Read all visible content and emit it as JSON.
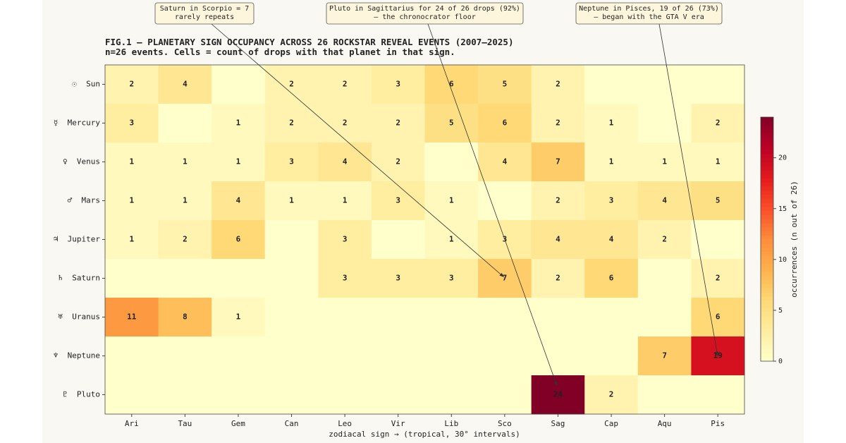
{
  "chart_data": {
    "type": "heatmap",
    "title": "FIG.1 — PLANETARY SIGN OCCUPANCY ACROSS 26 ROCKSTAR REVEAL EVENTS  (2007–2025)",
    "subtitle": "n=26 events. Cells = count of drops with that planet in that sign.",
    "x_label": "zodiacal sign  →  (tropical, 30° intervals)",
    "x_categories": [
      "Ari",
      "Tau",
      "Gem",
      "Can",
      "Leo",
      "Vir",
      "Lib",
      "Sco",
      "Sag",
      "Cap",
      "Aqu",
      "Pis"
    ],
    "y_categories": [
      "☉  Sun",
      "☿  Mercury",
      "♀  Venus",
      "♂  Mars",
      "♃  Jupiter",
      "♄  Saturn",
      "♅  Uranus",
      "♆  Neptune",
      "♇  Pluto"
    ],
    "values": [
      [
        2,
        4,
        0,
        2,
        2,
        3,
        6,
        5,
        2,
        0,
        0,
        0
      ],
      [
        3,
        0,
        1,
        2,
        2,
        2,
        5,
        6,
        2,
        1,
        0,
        2
      ],
      [
        1,
        1,
        1,
        3,
        4,
        2,
        0,
        4,
        7,
        1,
        1,
        1
      ],
      [
        1,
        1,
        4,
        1,
        1,
        3,
        1,
        0,
        2,
        3,
        4,
        5
      ],
      [
        1,
        2,
        6,
        0,
        3,
        0,
        1,
        3,
        4,
        4,
        2,
        0
      ],
      [
        0,
        0,
        0,
        0,
        3,
        3,
        3,
        7,
        2,
        6,
        0,
        2
      ],
      [
        11,
        8,
        1,
        0,
        0,
        0,
        0,
        0,
        0,
        0,
        0,
        6
      ],
      [
        0,
        0,
        0,
        0,
        0,
        0,
        0,
        0,
        0,
        0,
        7,
        19
      ],
      [
        0,
        0,
        0,
        0,
        0,
        0,
        0,
        0,
        24,
        2,
        0,
        0
      ]
    ],
    "colormap": "YlOrRd",
    "clim": [
      0,
      24
    ],
    "cticks": [
      0,
      5,
      10,
      15,
      20
    ],
    "colorbar_label": "occurrences (n out of 26)",
    "annotations": [
      {
        "lines": [
          "Saturn in Scorpio = 7",
          "rarely repeats"
        ]
      },
      {
        "lines": [
          "Pluto in Sagittarius for 24 of 26 drops (92%)",
          "— the chronocrator floor"
        ]
      },
      {
        "lines": [
          "Neptune in Pisces, 19 of 26 (73%)",
          "— began with the GTA V era"
        ]
      }
    ]
  }
}
